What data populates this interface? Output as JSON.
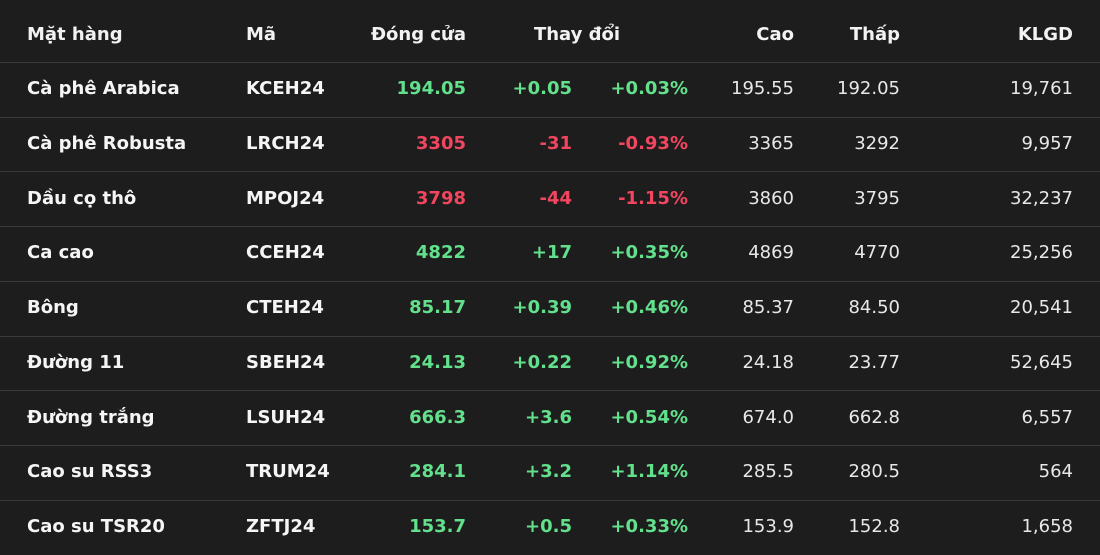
{
  "table": {
    "header": [
      "Mặt hàng",
      "Mã",
      "Đóng cửa",
      "Thay đổi",
      "Cao",
      "Thấp",
      "KLGD"
    ],
    "rows": [
      [
        "Cà phê Arabica",
        "KCEH24",
        "194.05",
        "+0.05",
        "+0.03%",
        "195.55",
        "192.05",
        "19,761"
      ],
      [
        "Cà phê Robusta",
        "LRCH24",
        "3305",
        "-31",
        "-0.93%",
        "3365",
        "3292",
        "9,957"
      ],
      [
        "Dầu cọ thô",
        "MPOJ24",
        "3798",
        "-44",
        "-1.15%",
        "3860",
        "3795",
        "32,237"
      ],
      [
        "Ca cao",
        "CCEH24",
        "4822",
        "+17",
        "+0.35%",
        "4869",
        "4770",
        "25,256"
      ],
      [
        "Bông",
        "CTEH24",
        "85.17",
        "+0.39",
        "+0.46%",
        "85.37",
        "84.50",
        "20,541"
      ],
      [
        "Đường 11",
        "SBEH24",
        "24.13",
        "+0.22",
        "+0.92%",
        "24.18",
        "23.77",
        "52,645"
      ],
      [
        "Đường trắng",
        "LSUH24",
        "666.3",
        "+3.6",
        "+0.54%",
        "674.0",
        "662.8",
        "6,557"
      ],
      [
        "Cao su RSS3",
        "TRUM24",
        "284.1",
        "+3.2",
        "+1.14%",
        "285.5",
        "280.5",
        "564"
      ],
      [
        "Cao su TSR20",
        "ZFTJ24",
        "153.7",
        "+0.5",
        "+0.33%",
        "153.9",
        "152.8",
        "1,658"
      ]
    ]
  }
}
